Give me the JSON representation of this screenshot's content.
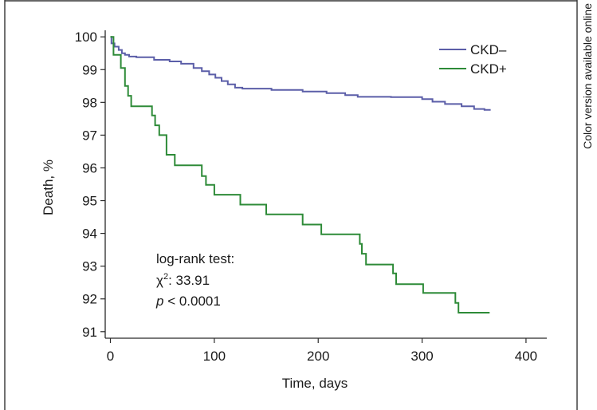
{
  "chart_data": {
    "type": "line",
    "title": "",
    "xlabel": "Time, days",
    "ylabel": "Death, %",
    "xlim": [
      -5,
      420
    ],
    "ylim": [
      90.8,
      100.2
    ],
    "xticks": [
      0,
      100,
      200,
      300,
      400
    ],
    "yticks": [
      91,
      92,
      93,
      94,
      95,
      96,
      97,
      98,
      99,
      100
    ],
    "grid": false,
    "legend_position": "top-right",
    "step": true,
    "series": [
      {
        "name": "CKD–",
        "color": "#5b5ea8",
        "points": [
          [
            0,
            100
          ],
          [
            1,
            99.8
          ],
          [
            4,
            99.7
          ],
          [
            8,
            99.6
          ],
          [
            11,
            99.5
          ],
          [
            14,
            99.45
          ],
          [
            18,
            99.4
          ],
          [
            25,
            99.38
          ],
          [
            42,
            99.3
          ],
          [
            57,
            99.25
          ],
          [
            68,
            99.18
          ],
          [
            80,
            99.05
          ],
          [
            88,
            98.95
          ],
          [
            95,
            98.85
          ],
          [
            101,
            98.75
          ],
          [
            107,
            98.65
          ],
          [
            113,
            98.55
          ],
          [
            120,
            98.45
          ],
          [
            127,
            98.42
          ],
          [
            155,
            98.38
          ],
          [
            185,
            98.33
          ],
          [
            208,
            98.28
          ],
          [
            226,
            98.22
          ],
          [
            238,
            98.17
          ],
          [
            270,
            98.16
          ],
          [
            300,
            98.1
          ],
          [
            310,
            98.02
          ],
          [
            322,
            97.95
          ],
          [
            338,
            97.88
          ],
          [
            350,
            97.8
          ],
          [
            360,
            97.77
          ],
          [
            366,
            97.77
          ]
        ]
      },
      {
        "name": "CKD+",
        "color": "#2e8b38",
        "points": [
          [
            0,
            100
          ],
          [
            3,
            99.45
          ],
          [
            10,
            99.05
          ],
          [
            14,
            98.5
          ],
          [
            17,
            98.2
          ],
          [
            20,
            97.88
          ],
          [
            40,
            97.6
          ],
          [
            43,
            97.3
          ],
          [
            47,
            97.0
          ],
          [
            54,
            96.4
          ],
          [
            62,
            96.08
          ],
          [
            88,
            95.75
          ],
          [
            92,
            95.48
          ],
          [
            100,
            95.18
          ],
          [
            125,
            94.88
          ],
          [
            150,
            94.58
          ],
          [
            185,
            94.27
          ],
          [
            203,
            93.97
          ],
          [
            240,
            93.68
          ],
          [
            242,
            93.38
          ],
          [
            246,
            93.05
          ],
          [
            272,
            92.78
          ],
          [
            275,
            92.45
          ],
          [
            301,
            92.18
          ],
          [
            332,
            91.88
          ],
          [
            335,
            91.58
          ],
          [
            365,
            91.58
          ]
        ]
      }
    ],
    "annotation": {
      "line1": "log-rank test:",
      "chi_symbol": "χ",
      "chi_exponent": "2",
      "chi_value": ": 33.91",
      "p_symbol": "p",
      "p_value": " < 0.0001"
    }
  },
  "side_note": "Color version available online"
}
